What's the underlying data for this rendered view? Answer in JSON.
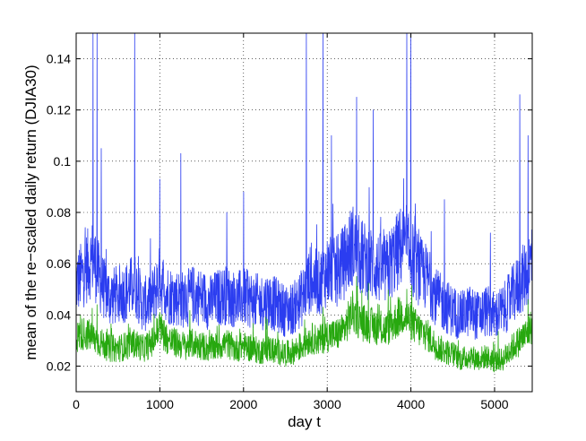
{
  "chart_data": {
    "type": "line",
    "title": "",
    "xlabel": "day t",
    "ylabel": "mean of the re−scaled daily return (DJIA30)",
    "xlim": [
      0,
      5450
    ],
    "ylim": [
      0.01,
      0.15
    ],
    "xticks": [
      "0",
      "1000",
      "2000",
      "3000",
      "4000",
      "5000"
    ],
    "yticks": [
      "0.02",
      "0.04",
      "0.06",
      "0.08",
      "0.1",
      "0.12",
      "0.14"
    ],
    "xtick_values": [
      0,
      1000,
      2000,
      3000,
      4000,
      5000
    ],
    "ytick_values": [
      0.02,
      0.04,
      0.06,
      0.08,
      0.1,
      0.12,
      0.14
    ],
    "grid": true,
    "series": [
      {
        "color": "#2b3df0",
        "x": [
          0,
          100,
          200,
          300,
          400,
          500,
          600,
          700,
          800,
          900,
          1000,
          1100,
          1200,
          1300,
          1400,
          1500,
          1600,
          1700,
          1800,
          1900,
          2000,
          2100,
          2200,
          2300,
          2400,
          2500,
          2600,
          2700,
          2800,
          2900,
          3000,
          3100,
          3200,
          3300,
          3400,
          3500,
          3600,
          3700,
          3800,
          3900,
          4000,
          4100,
          4200,
          4300,
          4400,
          4500,
          4600,
          4700,
          4800,
          4900,
          5000,
          5100,
          5200,
          5300,
          5400,
          5450
        ],
        "y": [
          0.05,
          0.055,
          0.06,
          0.05,
          0.045,
          0.046,
          0.047,
          0.05,
          0.042,
          0.044,
          0.052,
          0.046,
          0.045,
          0.044,
          0.046,
          0.045,
          0.043,
          0.045,
          0.046,
          0.044,
          0.045,
          0.044,
          0.043,
          0.044,
          0.042,
          0.04,
          0.041,
          0.045,
          0.052,
          0.05,
          0.055,
          0.054,
          0.058,
          0.065,
          0.06,
          0.058,
          0.056,
          0.055,
          0.06,
          0.065,
          0.06,
          0.055,
          0.052,
          0.045,
          0.042,
          0.04,
          0.038,
          0.04,
          0.038,
          0.04,
          0.038,
          0.04,
          0.045,
          0.05,
          0.055,
          0.06
        ],
        "spikes": [
          [
            200,
            0.15
          ],
          [
            250,
            0.15
          ],
          [
            300,
            0.105
          ],
          [
            700,
            0.15
          ],
          [
            1000,
            0.093
          ],
          [
            1250,
            0.103
          ],
          [
            1800,
            0.08
          ],
          [
            2000,
            0.088
          ],
          [
            2750,
            0.15
          ],
          [
            2950,
            0.15
          ],
          [
            3050,
            0.11
          ],
          [
            3350,
            0.125
          ],
          [
            3550,
            0.12
          ],
          [
            3950,
            0.15
          ],
          [
            4000,
            0.15
          ],
          [
            4400,
            0.085
          ],
          [
            4950,
            0.072
          ],
          [
            5300,
            0.126
          ],
          [
            5400,
            0.11
          ]
        ]
      },
      {
        "color": "#27a80f",
        "x": [
          0,
          100,
          200,
          300,
          400,
          500,
          600,
          700,
          800,
          900,
          1000,
          1100,
          1200,
          1300,
          1400,
          1500,
          1600,
          1700,
          1800,
          1900,
          2000,
          2100,
          2200,
          2300,
          2400,
          2500,
          2600,
          2700,
          2800,
          2900,
          3000,
          3100,
          3200,
          3300,
          3400,
          3500,
          3600,
          3700,
          3800,
          3900,
          4000,
          4100,
          4200,
          4300,
          4400,
          4500,
          4600,
          4700,
          4800,
          4900,
          5000,
          5100,
          5200,
          5300,
          5400,
          5450
        ],
        "y": [
          0.03,
          0.032,
          0.03,
          0.028,
          0.026,
          0.026,
          0.027,
          0.028,
          0.026,
          0.028,
          0.034,
          0.029,
          0.028,
          0.027,
          0.028,
          0.027,
          0.026,
          0.027,
          0.028,
          0.026,
          0.027,
          0.026,
          0.025,
          0.026,
          0.025,
          0.024,
          0.025,
          0.027,
          0.03,
          0.029,
          0.031,
          0.031,
          0.033,
          0.04,
          0.036,
          0.035,
          0.034,
          0.033,
          0.036,
          0.039,
          0.036,
          0.033,
          0.031,
          0.027,
          0.025,
          0.024,
          0.022,
          0.023,
          0.022,
          0.023,
          0.021,
          0.022,
          0.026,
          0.029,
          0.032,
          0.035
        ],
        "spikes": [
          [
            50,
            0.04
          ],
          [
            250,
            0.044
          ],
          [
            1000,
            0.041
          ],
          [
            2950,
            0.043
          ],
          [
            3350,
            0.055
          ],
          [
            3950,
            0.05
          ],
          [
            5400,
            0.046
          ]
        ]
      }
    ]
  }
}
